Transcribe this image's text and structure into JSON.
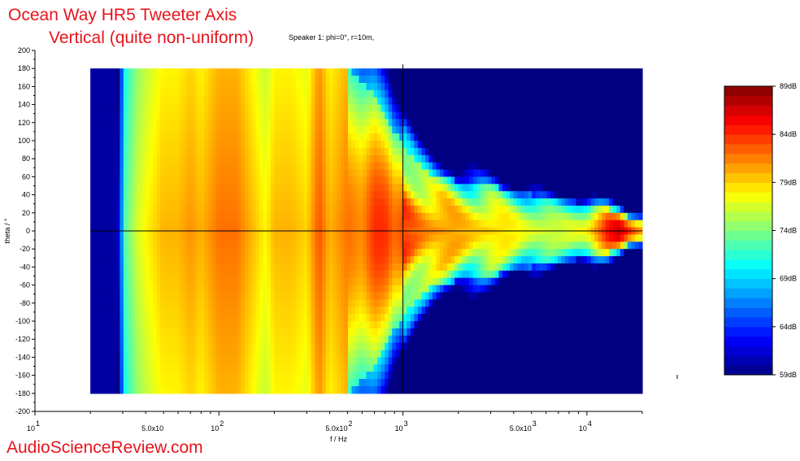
{
  "header": {
    "title_line1": "Ocean Way HR5 Tweeter Axis",
    "title_line2": "Vertical (quite non-uniform)",
    "subtitle": "Speaker 1: phi=0°, r=10m,"
  },
  "footer": {
    "watermark": "AudioScienceReview.com"
  },
  "colors": {
    "title": "#e8141c",
    "background_fill": "#0a1fd0"
  },
  "chart_data": {
    "type": "heatmap",
    "xlabel": "f / Hz",
    "ylabel": "theta / °",
    "x_scale": "log",
    "xlim": [
      10,
      20000
    ],
    "ylim": [
      -200,
      200
    ],
    "data_extent_x": [
      20,
      20000
    ],
    "data_extent_y": [
      -180,
      180
    ],
    "x_tick_labels": [
      {
        "value": 10,
        "label": "10"
      },
      {
        "value": 50,
        "label": "5.0x10"
      },
      {
        "value": 100,
        "label": "10"
      },
      {
        "value": 500,
        "label": "5.0x10"
      },
      {
        "value": 1000,
        "label": "10"
      },
      {
        "value": 5000,
        "label": "5.0x10"
      },
      {
        "value": 10000,
        "label": "10"
      }
    ],
    "x_tick_exponents": [
      {
        "value": 10,
        "label": "1"
      },
      {
        "value": 100,
        "label": "2"
      },
      {
        "value": 500,
        "label": "2"
      },
      {
        "value": 1000,
        "label": "3"
      },
      {
        "value": 5000,
        "label": "3"
      },
      {
        "value": 10000,
        "label": "4"
      }
    ],
    "y_ticks": [
      200,
      180,
      160,
      140,
      120,
      100,
      80,
      60,
      40,
      20,
      0,
      -20,
      -40,
      -60,
      -80,
      -100,
      -120,
      -140,
      -160,
      -180,
      -200
    ],
    "colorbar": {
      "range_db": [
        59,
        89
      ],
      "labels": [
        "89dB",
        "84dB",
        "79dB",
        "74dB",
        "69dB",
        "64dB",
        "59dB"
      ],
      "label_values": [
        89,
        84,
        79,
        74,
        69,
        64,
        59
      ],
      "colormap": "jet"
    },
    "crosshair": {
      "x": 1000,
      "y": 0
    },
    "level_profile": {
      "frequencies_hz": [
        20,
        28,
        31,
        35,
        40,
        50,
        60,
        70,
        80,
        100,
        125,
        150,
        180,
        200,
        250,
        300,
        350,
        400,
        500,
        600,
        700,
        800,
        900,
        1000,
        1200,
        1500,
        2000,
        3000,
        5000,
        7000,
        10000,
        13000,
        15000,
        17000,
        20000
      ],
      "on_axis_db": [
        60,
        60,
        73,
        76,
        78,
        80,
        80,
        81,
        80,
        82,
        82,
        80,
        78,
        80,
        80,
        79,
        83,
        80,
        82,
        81,
        84,
        84,
        82,
        83,
        82,
        81,
        80,
        79,
        77,
        76,
        78,
        85,
        87,
        84,
        80
      ],
      "beam_halfwidth_deg": [
        180,
        180,
        180,
        180,
        180,
        180,
        180,
        180,
        180,
        180,
        180,
        180,
        180,
        180,
        180,
        180,
        180,
        180,
        180,
        165,
        150,
        130,
        110,
        95,
        75,
        60,
        55,
        50,
        40,
        35,
        30,
        25,
        20,
        15,
        15
      ]
    }
  }
}
